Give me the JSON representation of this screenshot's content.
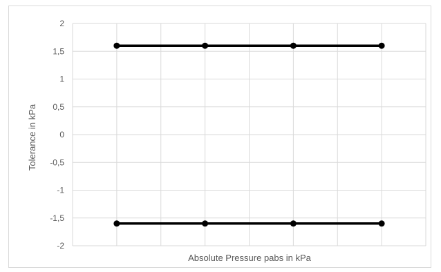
{
  "chart_data": {
    "type": "line",
    "title": "",
    "xlabel": "Absolute Pressure pabs in kPa",
    "ylabel": "Tolerance in kPa",
    "x": [
      1,
      3,
      5,
      7
    ],
    "x_ticks_shown": false,
    "ylim": [
      -2,
      2
    ],
    "ytick_values": [
      2,
      1.5,
      1,
      0.5,
      0,
      -0.5,
      -1,
      -1.5,
      -2
    ],
    "ytick_labels": [
      "2",
      "1,5",
      "1",
      "0,5",
      "0",
      "-0,5",
      "-1",
      "-1,5",
      "-2"
    ],
    "grid": true,
    "legend": "none",
    "series": [
      {
        "values": [
          1.6,
          1.6,
          1.6,
          1.6
        ],
        "color": "#000000"
      },
      {
        "values": [
          -1.6,
          -1.6,
          -1.6,
          -1.6
        ],
        "color": "#000000"
      }
    ]
  }
}
